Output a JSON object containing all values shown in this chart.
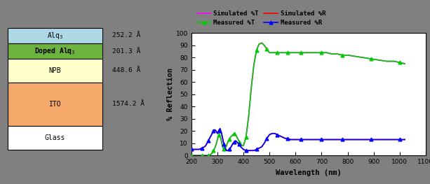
{
  "layers": [
    {
      "name": "Alq$_3$",
      "thickness": "252.2 Å",
      "color": "#add8e6",
      "bold": false
    },
    {
      "name": "Doped Alq$_3$",
      "thickness": "201.3 Å",
      "color": "#6db33f",
      "bold": true
    },
    {
      "name": "NPB",
      "thickness": "448.6 Å",
      "color": "#ffffcc",
      "bold": false
    },
    {
      "name": "ITO",
      "thickness": "1574.2 Å",
      "color": "#f4a96a",
      "bold": false
    },
    {
      "name": "Glass",
      "thickness": "",
      "color": "#ffffff",
      "bold": false
    }
  ],
  "layer_heights": [
    1.0,
    1.0,
    1.5,
    2.8,
    1.5
  ],
  "bg_color": "#808080",
  "wavelength": [
    200,
    210,
    220,
    230,
    240,
    250,
    255,
    260,
    265,
    270,
    275,
    280,
    285,
    290,
    295,
    300,
    305,
    310,
    315,
    320,
    325,
    330,
    335,
    340,
    345,
    350,
    355,
    360,
    365,
    370,
    375,
    380,
    385,
    390,
    395,
    400,
    410,
    420,
    430,
    440,
    450,
    460,
    470,
    480,
    490,
    500,
    510,
    520,
    530,
    540,
    550,
    560,
    570,
    580,
    590,
    600,
    620,
    640,
    660,
    680,
    700,
    720,
    740,
    760,
    780,
    800,
    830,
    860,
    890,
    920,
    950,
    980,
    1000,
    1020
  ],
  "T_sim": [
    0,
    0,
    0,
    0,
    0,
    0,
    0,
    0,
    0,
    0,
    1,
    2,
    4,
    6,
    9,
    13,
    17,
    16,
    12,
    7,
    5,
    6,
    8,
    11,
    13,
    15,
    16,
    17,
    18,
    17,
    15,
    13,
    11,
    9,
    8,
    8,
    15,
    32,
    55,
    74,
    86,
    91,
    92,
    90,
    87,
    84,
    84,
    84,
    84,
    84,
    84,
    84,
    84,
    84,
    84,
    84,
    84,
    84,
    84,
    84,
    84,
    84,
    83,
    83,
    82,
    82,
    81,
    80,
    79,
    78,
    77,
    77,
    76,
    75
  ],
  "T_meas": [
    0,
    0,
    0,
    0,
    0,
    0,
    0,
    0,
    0,
    0,
    1,
    2,
    4,
    6,
    9,
    13,
    17,
    16,
    12,
    7,
    5,
    6,
    8,
    11,
    13,
    15,
    16,
    17,
    18,
    17,
    15,
    13,
    11,
    9,
    8,
    8,
    15,
    32,
    55,
    74,
    86,
    91,
    92,
    90,
    87,
    84,
    84,
    84,
    84,
    84,
    84,
    84,
    84,
    84,
    84,
    84,
    84,
    84,
    84,
    84,
    84,
    84,
    83,
    83,
    82,
    82,
    81,
    80,
    79,
    78,
    77,
    77,
    76,
    75
  ],
  "R_sim": [
    5,
    5,
    5,
    5,
    6,
    7,
    8,
    10,
    12,
    14,
    16,
    18,
    20,
    21,
    20,
    18,
    20,
    22,
    19,
    14,
    9,
    6,
    4,
    4,
    5,
    6,
    8,
    10,
    11,
    12,
    11,
    10,
    9,
    7,
    6,
    5,
    4,
    4,
    4,
    4,
    5,
    6,
    7,
    10,
    14,
    17,
    18,
    18,
    17,
    16,
    15,
    14,
    14,
    13,
    13,
    13,
    13,
    13,
    13,
    13,
    13,
    13,
    13,
    13,
    13,
    13,
    13,
    13,
    13,
    13,
    13,
    13,
    13,
    13
  ],
  "R_meas": [
    5,
    5,
    5,
    5,
    6,
    7,
    8,
    10,
    12,
    14,
    16,
    18,
    20,
    21,
    20,
    18,
    20,
    22,
    19,
    14,
    9,
    6,
    4,
    4,
    5,
    6,
    8,
    10,
    11,
    12,
    11,
    10,
    9,
    7,
    6,
    5,
    4,
    4,
    4,
    4,
    5,
    6,
    7,
    10,
    14,
    17,
    18,
    18,
    17,
    16,
    15,
    14,
    14,
    13,
    13,
    13,
    13,
    13,
    13,
    13,
    13,
    13,
    13,
    13,
    13,
    13,
    13,
    13,
    13,
    13,
    13,
    13,
    13,
    13
  ],
  "xlabel": "Wavelength (nm)",
  "ylabel": "% Reflection",
  "xlim": [
    200,
    1100
  ],
  "ylim": [
    0,
    100
  ],
  "xticks": [
    200,
    300,
    400,
    500,
    600,
    700,
    800,
    900,
    1000,
    1100
  ],
  "yticks": [
    0,
    10,
    20,
    30,
    40,
    50,
    60,
    70,
    80,
    90,
    100
  ],
  "T_color_sim": "#ff00ff",
  "T_color_meas": "#00cc00",
  "R_color_sim": "#ff0000",
  "R_color_meas": "#0000ff",
  "marker_step": 4,
  "marker_size": 3.5
}
